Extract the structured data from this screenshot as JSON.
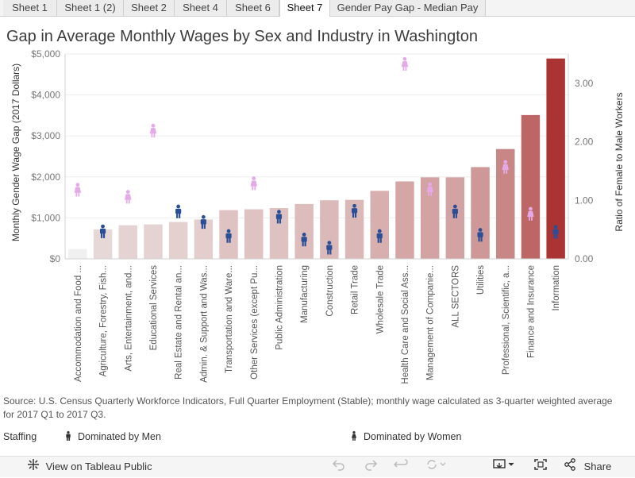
{
  "tabs": [
    {
      "label": "Sheet 1"
    },
    {
      "label": "Sheet 1 (2)"
    },
    {
      "label": "Sheet 2"
    },
    {
      "label": "Sheet 4"
    },
    {
      "label": "Sheet 6"
    },
    {
      "label": "Sheet 7",
      "active": true
    },
    {
      "label": "Gender Pay Gap - Median Pay"
    }
  ],
  "title": "Gap in Average Monthly Wages by Sex and Industry in Washington",
  "source": "Source: U.S. Census Quarterly Workforce Indicators, Full Quarter Employment (Stable); monthly wage calculated as 3-quarter weighted average for 2017 Q1 to 2017 Q3.",
  "legend": {
    "title": "Staffing",
    "men_label": "Dominated by Men",
    "women_label": "Dominated by Women",
    "men_color": "#2b4f96",
    "women_color": "#e6a9e8"
  },
  "footer": {
    "view_label": "View on Tableau Public",
    "share_label": "Share"
  },
  "chart_data": {
    "type": "bar",
    "ylabel": "Monthly Gender Wage Gap (2017 Dollars)",
    "y2label": "Ratio of Female to Male Workers",
    "ylim": [
      0,
      5000
    ],
    "y2lim": [
      0,
      3.5
    ],
    "y_ticks": [
      "$0",
      "$1,000",
      "$2,000",
      "$3,000",
      "$4,000",
      "$5,000"
    ],
    "y2_ticks": [
      "0.00",
      "1.00",
      "2.00",
      "3.00"
    ],
    "bar_color_low": "#f0f0f0",
    "bar_color_high": "#a93433",
    "categories": [
      "Accommodation and Food ...",
      "Agriculture, Forestry, Fish...",
      "Arts, Entertainment, and...",
      "Educational Services",
      "Real Estate and Rental an...",
      "Admin. & Support and Was...",
      "Transportation and Ware...",
      "Other Services (except Pu...",
      "Public Administration",
      "Manufacturing",
      "Construction",
      "Retail Trade",
      "Wholesale Trade",
      "Health Care and Social Ass...",
      "Management of Companie...",
      "ALL SECTORS",
      "Utilities",
      "Professional, Scientific, a...",
      "Finance and Insurance",
      "Information"
    ],
    "values": [
      240,
      720,
      820,
      840,
      900,
      960,
      1190,
      1210,
      1240,
      1340,
      1430,
      1440,
      1660,
      1890,
      1990,
      1990,
      2240,
      2680,
      3510,
      4890
    ],
    "ratio": [
      1.17,
      0.46,
      1.05,
      2.18,
      0.8,
      0.62,
      0.38,
      1.28,
      0.71,
      0.32,
      0.18,
      0.81,
      0.38,
      3.32,
      1.18,
      0.8,
      0.4,
      1.56,
      0.76,
      0.45
    ],
    "staffing": [
      "women",
      "men",
      "women",
      "women",
      "men",
      "men",
      "men",
      "women",
      "men",
      "men",
      "men",
      "men",
      "men",
      "women",
      "women",
      "men",
      "men",
      "women",
      "women",
      "men"
    ]
  }
}
